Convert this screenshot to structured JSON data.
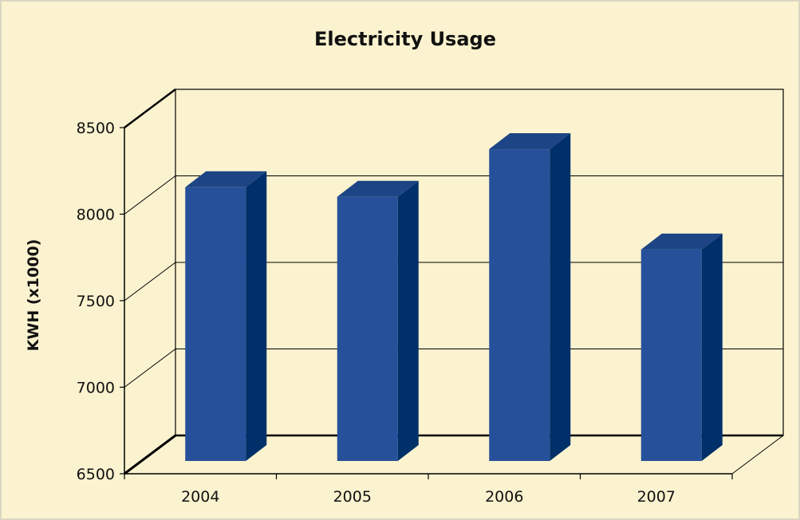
{
  "chart_data": {
    "type": "bar",
    "title": "Electricity Usage",
    "xlabel": "",
    "ylabel": "KWH (x1000)",
    "categories": [
      "2004",
      "2005",
      "2006",
      "2007"
    ],
    "values": [
      8100,
      8045,
      8320,
      7740
    ],
    "ylim": [
      6500,
      8500
    ],
    "yticks": [
      "6500",
      "7000",
      "7500",
      "8000",
      "8500"
    ],
    "grid": true,
    "legend": "none",
    "three_d": true
  },
  "colors": {
    "background": "#fbf3cf",
    "border": "#d9d6c3",
    "bar_front": "#27509a",
    "bar_side": "#00306a",
    "bar_top": "#1d4585",
    "axis": "#000000"
  }
}
